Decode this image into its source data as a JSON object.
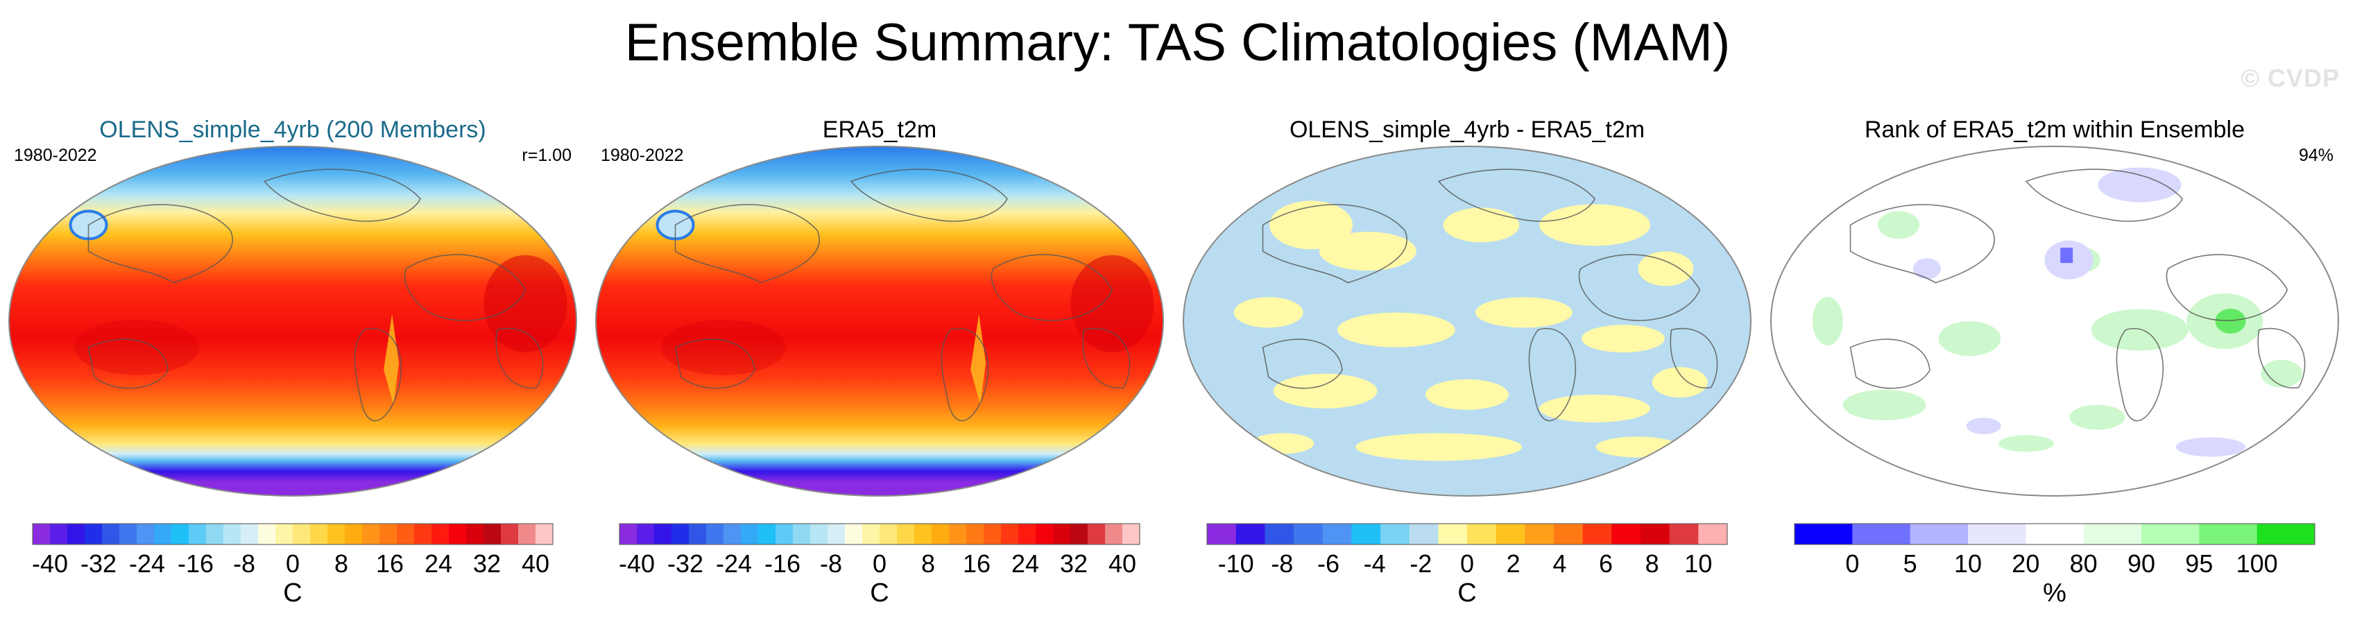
{
  "title": "Ensemble Summary: TAS Climatologies (MAM)",
  "watermark": "© CVDP",
  "accent_title_color": "#1a6a8a",
  "panels": [
    {
      "subtitle": "OLENS_simple_4yrb (200 Members)",
      "subtitle_color": "#1a6a8a",
      "left_label": "1980-2022",
      "right_label": "r=1.00",
      "map_style": "temperature",
      "colorbar": {
        "colors": [
          "#8a2be2",
          "#5a1ee8",
          "#3314e8",
          "#1f2ee8",
          "#2f56e6",
          "#3f78ee",
          "#4d94f4",
          "#34a9f6",
          "#1fbff8",
          "#5ccbf5",
          "#8fdaf2",
          "#b7e6f4",
          "#d6eff6",
          "#fffde0",
          "#fff5a6",
          "#ffe879",
          "#ffd84a",
          "#ffc21f",
          "#ffac12",
          "#ff9418",
          "#ff7a14",
          "#ff5c14",
          "#ff3a12",
          "#ff1a10",
          "#f3000b",
          "#d8000a",
          "#ba0712",
          "#df3a3f",
          "#f08a8a",
          "#ffc6c6"
        ],
        "ticks": [
          "-40",
          "-32",
          "-24",
          "-16",
          "-8",
          "0",
          "8",
          "16",
          "24",
          "32",
          "40"
        ],
        "units": "C"
      }
    },
    {
      "subtitle": "ERA5_t2m",
      "subtitle_color": "#000000",
      "left_label": "1980-2022",
      "right_label": "",
      "map_style": "temperature",
      "colorbar": {
        "colors": [
          "#8a2be2",
          "#5a1ee8",
          "#3314e8",
          "#1f2ee8",
          "#2f56e6",
          "#3f78ee",
          "#4d94f4",
          "#34a9f6",
          "#1fbff8",
          "#5ccbf5",
          "#8fdaf2",
          "#b7e6f4",
          "#d6eff6",
          "#fffde0",
          "#fff5a6",
          "#ffe879",
          "#ffd84a",
          "#ffc21f",
          "#ffac12",
          "#ff9418",
          "#ff7a14",
          "#ff5c14",
          "#ff3a12",
          "#ff1a10",
          "#f3000b",
          "#d8000a",
          "#ba0712",
          "#df3a3f",
          "#f08a8a",
          "#ffc6c6"
        ],
        "ticks": [
          "-40",
          "-32",
          "-24",
          "-16",
          "-8",
          "0",
          "8",
          "16",
          "24",
          "32",
          "40"
        ],
        "units": "C"
      }
    },
    {
      "subtitle": "OLENS_simple_4yrb - ERA5_t2m",
      "subtitle_color": "#000000",
      "left_label": "",
      "right_label": "",
      "map_style": "difference",
      "colorbar": {
        "colors": [
          "#8a2be2",
          "#3314e8",
          "#2f56e6",
          "#3f78ee",
          "#4d94f4",
          "#1fbff8",
          "#7ad3f4",
          "#b9dcf0",
          "#fff9a8",
          "#ffe25c",
          "#ffc21f",
          "#ff9f1a",
          "#ff7a14",
          "#ff3a12",
          "#f3000b",
          "#d8000a",
          "#df3a3f",
          "#ffb0b0"
        ],
        "ticks": [
          "-10",
          "-8",
          "-6",
          "-4",
          "-2",
          "0",
          "2",
          "4",
          "6",
          "8",
          "10"
        ],
        "units": "C"
      }
    },
    {
      "subtitle": "Rank of ERA5_t2m within Ensemble",
      "subtitle_color": "#000000",
      "left_label": "",
      "right_label": "94%",
      "map_style": "rank",
      "colorbar": {
        "colors": [
          "#0a00ff",
          "#7070ff",
          "#b3b3ff",
          "#e6e6ff",
          "#ffffff",
          "#e3ffe3",
          "#b3ffb3",
          "#7af47a",
          "#1ee01e"
        ],
        "boundaries": [
          0,
          5,
          10,
          20,
          80,
          90,
          95,
          100
        ],
        "ticks": [
          "0",
          "5",
          "10",
          "20",
          "80",
          "90",
          "95",
          "100"
        ],
        "units": "%"
      }
    }
  ]
}
